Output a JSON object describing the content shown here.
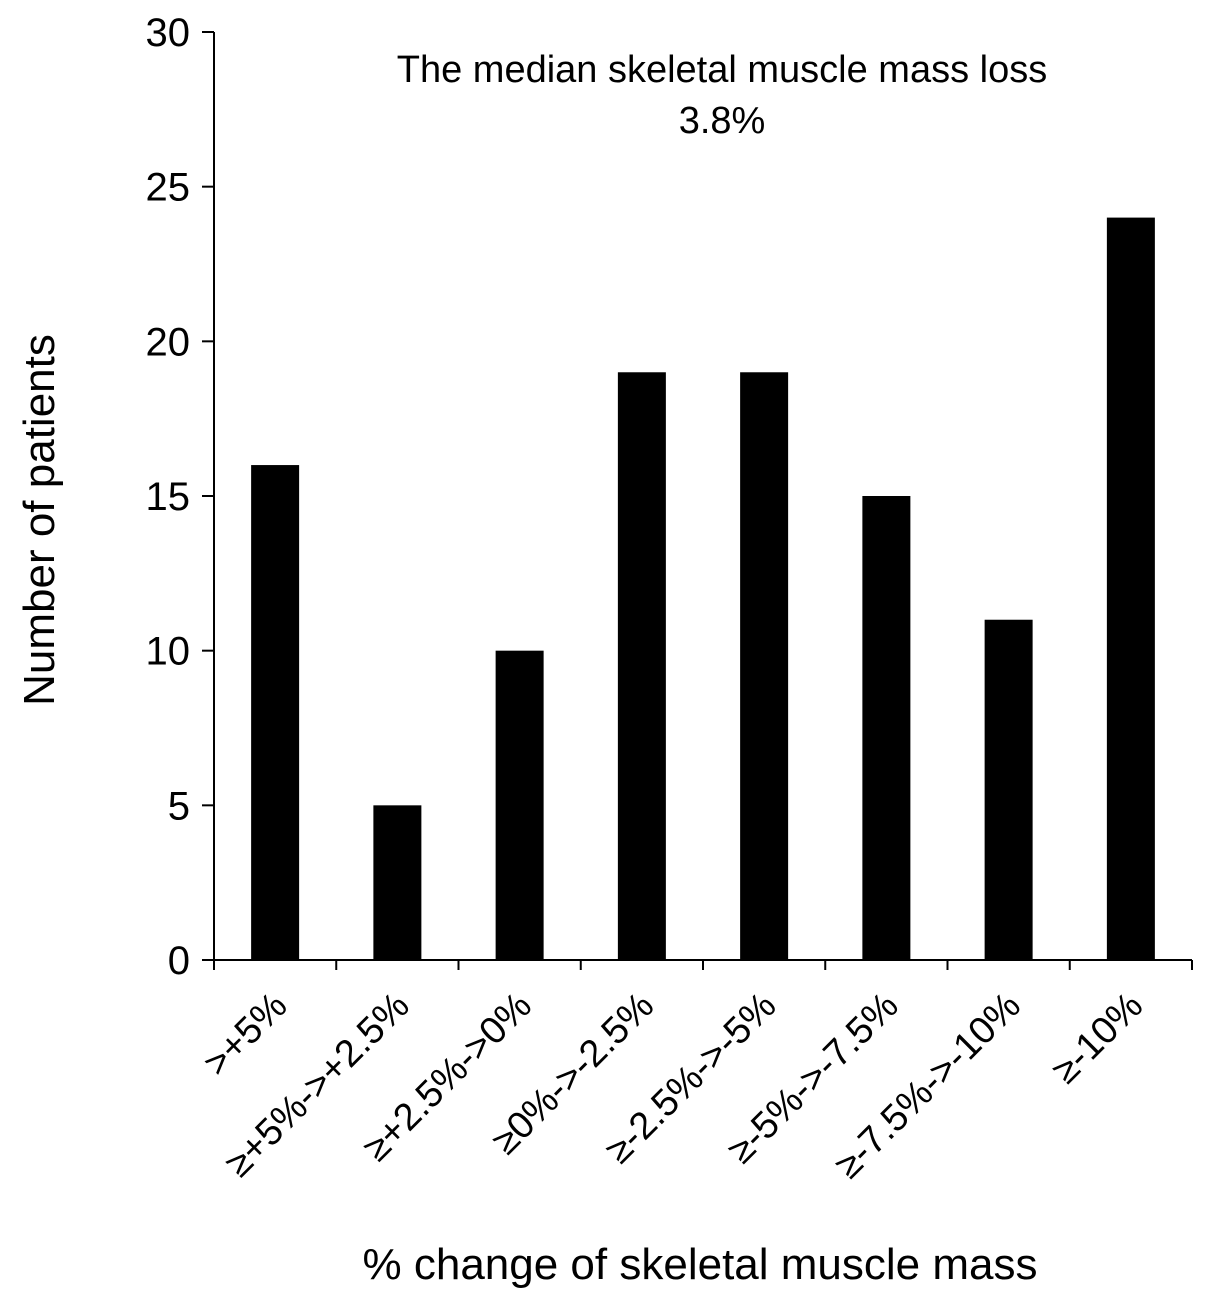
{
  "chart_data": {
    "type": "bar",
    "title": "",
    "annotation": [
      "The median skeletal muscle mass loss",
      "3.8%"
    ],
    "xlabel": "% change of skeletal muscle mass",
    "ylabel": "Number of patients",
    "categories": [
      ">+5%",
      "≥+5%->+2.5%",
      "≥+2.5%->0%",
      "≥0%->-2.5%",
      "≥-2.5%->-5%",
      "≥-5%->-7.5%",
      "≥-7.5%->-10%",
      "≥-10%"
    ],
    "values": [
      16,
      5,
      10,
      19,
      19,
      15,
      11,
      24
    ],
    "ylim": [
      0,
      30
    ],
    "yticks": [
      "0",
      "5",
      "10",
      "15",
      "20",
      "25",
      "30"
    ],
    "grid": false,
    "legend": "none",
    "bar_color": "#000000"
  }
}
